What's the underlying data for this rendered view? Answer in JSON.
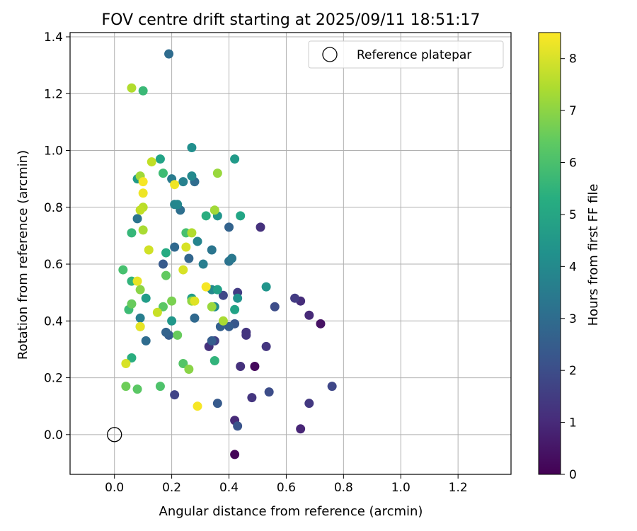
{
  "chart_data": {
    "type": "scatter",
    "title": "FOV centre drift starting at 2025/09/11 18:51:17",
    "xlabel": "Angular distance from reference (arcmin)",
    "ylabel": "Rotation from reference (arcmin)",
    "xlim": [
      -0.155,
      1.385
    ],
    "ylim": [
      -0.14,
      1.415
    ],
    "xticks": [
      "0.0",
      "0.2",
      "0.4",
      "0.6",
      "0.8",
      "1.0",
      "1.2"
    ],
    "yticks": [
      "0.0",
      "0.2",
      "0.4",
      "0.6",
      "0.8",
      "1.0",
      "1.2",
      "1.4"
    ],
    "grid": true,
    "legend": {
      "position": "upper-right",
      "entries": [
        "Reference platepar"
      ]
    },
    "reference": {
      "x": 0.0,
      "y": 0.0
    },
    "colorbar": {
      "label": "Hours from first FF file",
      "range": [
        0,
        8.5
      ],
      "ticks": [
        "0",
        "1",
        "2",
        "3",
        "4",
        "5",
        "6",
        "7",
        "8"
      ],
      "colormap": "viridis"
    },
    "points": [
      {
        "x": 0.42,
        "y": -0.07,
        "hours": 0.1
      },
      {
        "x": 0.49,
        "y": 0.24,
        "hours": 0.2
      },
      {
        "x": 0.72,
        "y": 0.39,
        "hours": 0.4
      },
      {
        "x": 0.65,
        "y": 0.02,
        "hours": 0.9
      },
      {
        "x": 0.42,
        "y": 0.05,
        "hours": 1.0
      },
      {
        "x": 0.68,
        "y": 0.42,
        "hours": 1.0
      },
      {
        "x": 0.65,
        "y": 0.47,
        "hours": 1.1
      },
      {
        "x": 0.51,
        "y": 0.73,
        "hours": 1.2
      },
      {
        "x": 0.33,
        "y": 0.31,
        "hours": 1.2
      },
      {
        "x": 0.44,
        "y": 0.24,
        "hours": 1.2
      },
      {
        "x": 0.46,
        "y": 0.36,
        "hours": 1.3
      },
      {
        "x": 0.46,
        "y": 0.35,
        "hours": 1.3
      },
      {
        "x": 0.48,
        "y": 0.13,
        "hours": 1.3
      },
      {
        "x": 0.53,
        "y": 0.31,
        "hours": 1.3
      },
      {
        "x": 0.68,
        "y": 0.11,
        "hours": 1.4
      },
      {
        "x": 0.63,
        "y": 0.48,
        "hours": 1.5
      },
      {
        "x": 0.43,
        "y": 0.5,
        "hours": 1.5
      },
      {
        "x": 0.35,
        "y": 0.33,
        "hours": 1.6
      },
      {
        "x": 0.21,
        "y": 0.14,
        "hours": 1.7
      },
      {
        "x": 0.76,
        "y": 0.17,
        "hours": 1.8
      },
      {
        "x": 0.38,
        "y": 0.49,
        "hours": 1.8
      },
      {
        "x": 0.56,
        "y": 0.45,
        "hours": 2.0
      },
      {
        "x": 0.54,
        "y": 0.15,
        "hours": 2.0
      },
      {
        "x": 0.43,
        "y": 0.03,
        "hours": 2.2
      },
      {
        "x": 0.42,
        "y": 0.39,
        "hours": 2.3
      },
      {
        "x": 0.36,
        "y": 0.11,
        "hours": 2.4
      },
      {
        "x": 0.17,
        "y": 0.6,
        "hours": 2.4
      },
      {
        "x": 0.34,
        "y": 0.33,
        "hours": 2.5
      },
      {
        "x": 0.4,
        "y": 0.38,
        "hours": 2.5
      },
      {
        "x": 0.19,
        "y": 0.35,
        "hours": 2.5
      },
      {
        "x": 0.37,
        "y": 0.38,
        "hours": 2.6
      },
      {
        "x": 0.18,
        "y": 0.36,
        "hours": 2.7
      },
      {
        "x": 0.4,
        "y": 0.73,
        "hours": 2.7
      },
      {
        "x": 0.26,
        "y": 0.62,
        "hours": 2.8
      },
      {
        "x": 0.21,
        "y": 0.66,
        "hours": 2.9
      },
      {
        "x": 0.28,
        "y": 0.41,
        "hours": 2.9
      },
      {
        "x": 0.11,
        "y": 0.33,
        "hours": 3.0
      },
      {
        "x": 0.19,
        "y": 1.34,
        "hours": 3.0
      },
      {
        "x": 0.28,
        "y": 0.89,
        "hours": 3.0
      },
      {
        "x": 0.23,
        "y": 0.79,
        "hours": 3.1
      },
      {
        "x": 0.4,
        "y": 0.61,
        "hours": 3.2
      },
      {
        "x": 0.08,
        "y": 0.76,
        "hours": 3.3
      },
      {
        "x": 0.34,
        "y": 0.65,
        "hours": 3.3
      },
      {
        "x": 0.41,
        "y": 0.62,
        "hours": 3.4
      },
      {
        "x": 0.2,
        "y": 0.9,
        "hours": 3.5
      },
      {
        "x": 0.09,
        "y": 0.41,
        "hours": 3.6
      },
      {
        "x": 0.31,
        "y": 0.6,
        "hours": 3.6
      },
      {
        "x": 0.24,
        "y": 0.89,
        "hours": 3.7
      },
      {
        "x": 0.29,
        "y": 0.68,
        "hours": 3.8
      },
      {
        "x": 0.21,
        "y": 0.81,
        "hours": 3.8
      },
      {
        "x": 0.22,
        "y": 0.81,
        "hours": 3.9
      },
      {
        "x": 0.27,
        "y": 0.91,
        "hours": 4.0
      },
      {
        "x": 0.34,
        "y": 0.51,
        "hours": 4.0
      },
      {
        "x": 0.35,
        "y": 0.45,
        "hours": 4.1
      },
      {
        "x": 0.27,
        "y": 1.01,
        "hours": 4.2
      },
      {
        "x": 0.43,
        "y": 0.48,
        "hours": 4.3
      },
      {
        "x": 0.36,
        "y": 0.77,
        "hours": 4.4
      },
      {
        "x": 0.53,
        "y": 0.52,
        "hours": 4.4
      },
      {
        "x": 0.2,
        "y": 0.4,
        "hours": 4.5
      },
      {
        "x": 0.42,
        "y": 0.97,
        "hours": 4.6
      },
      {
        "x": 0.08,
        "y": 0.9,
        "hours": 4.6
      },
      {
        "x": 0.11,
        "y": 0.48,
        "hours": 4.7
      },
      {
        "x": 0.27,
        "y": 0.48,
        "hours": 4.7
      },
      {
        "x": 0.36,
        "y": 0.51,
        "hours": 4.8
      },
      {
        "x": 0.42,
        "y": 0.44,
        "hours": 4.9
      },
      {
        "x": 0.16,
        "y": 0.97,
        "hours": 4.9
      },
      {
        "x": 0.44,
        "y": 0.77,
        "hours": 5.0
      },
      {
        "x": 0.18,
        "y": 0.64,
        "hours": 5.2
      },
      {
        "x": 0.32,
        "y": 0.77,
        "hours": 5.3
      },
      {
        "x": 0.06,
        "y": 0.27,
        "hours": 5.3
      },
      {
        "x": 0.06,
        "y": 0.54,
        "hours": 5.5
      },
      {
        "x": 0.35,
        "y": 0.26,
        "hours": 5.5
      },
      {
        "x": 0.06,
        "y": 0.71,
        "hours": 5.6
      },
      {
        "x": 0.1,
        "y": 1.21,
        "hours": 5.7
      },
      {
        "x": 0.17,
        "y": 0.92,
        "hours": 5.8
      },
      {
        "x": 0.05,
        "y": 0.44,
        "hours": 5.8
      },
      {
        "x": 0.09,
        "y": 0.38,
        "hours": 5.9
      },
      {
        "x": 0.03,
        "y": 0.58,
        "hours": 6.0
      },
      {
        "x": 0.25,
        "y": 0.71,
        "hours": 6.0
      },
      {
        "x": 0.16,
        "y": 0.17,
        "hours": 6.1
      },
      {
        "x": 0.24,
        "y": 0.25,
        "hours": 6.2
      },
      {
        "x": 0.17,
        "y": 0.45,
        "hours": 6.3
      },
      {
        "x": 0.08,
        "y": 0.16,
        "hours": 6.3
      },
      {
        "x": 0.18,
        "y": 0.56,
        "hours": 6.4
      },
      {
        "x": 0.22,
        "y": 0.35,
        "hours": 6.5
      },
      {
        "x": 0.06,
        "y": 0.46,
        "hours": 6.5
      },
      {
        "x": 0.04,
        "y": 0.17,
        "hours": 6.6
      },
      {
        "x": 0.2,
        "y": 0.47,
        "hours": 6.8
      },
      {
        "x": 0.09,
        "y": 0.51,
        "hours": 7.0
      },
      {
        "x": 0.26,
        "y": 0.23,
        "hours": 7.0
      },
      {
        "x": 0.27,
        "y": 0.47,
        "hours": 7.1
      },
      {
        "x": 0.34,
        "y": 0.45,
        "hours": 7.2
      },
      {
        "x": 0.36,
        "y": 0.92,
        "hours": 7.2
      },
      {
        "x": 0.35,
        "y": 0.79,
        "hours": 7.3
      },
      {
        "x": 0.09,
        "y": 0.91,
        "hours": 7.3
      },
      {
        "x": 0.1,
        "y": 0.72,
        "hours": 7.4
      },
      {
        "x": 0.38,
        "y": 0.4,
        "hours": 7.4
      },
      {
        "x": 0.06,
        "y": 1.22,
        "hours": 7.5
      },
      {
        "x": 0.27,
        "y": 0.71,
        "hours": 7.5
      },
      {
        "x": 0.1,
        "y": 0.8,
        "hours": 7.6
      },
      {
        "x": 0.09,
        "y": 0.79,
        "hours": 7.7
      },
      {
        "x": 0.13,
        "y": 0.96,
        "hours": 7.7
      },
      {
        "x": 0.15,
        "y": 0.43,
        "hours": 7.8
      },
      {
        "x": 0.12,
        "y": 0.65,
        "hours": 7.9
      },
      {
        "x": 0.25,
        "y": 0.66,
        "hours": 8.0
      },
      {
        "x": 0.24,
        "y": 0.58,
        "hours": 8.0
      },
      {
        "x": 0.04,
        "y": 0.25,
        "hours": 8.0
      },
      {
        "x": 0.28,
        "y": 0.47,
        "hours": 8.1
      },
      {
        "x": 0.08,
        "y": 0.54,
        "hours": 8.2
      },
      {
        "x": 0.09,
        "y": 0.38,
        "hours": 8.2
      },
      {
        "x": 0.21,
        "y": 0.88,
        "hours": 8.3
      },
      {
        "x": 0.1,
        "y": 0.85,
        "hours": 8.3
      },
      {
        "x": 0.32,
        "y": 0.52,
        "hours": 8.4
      },
      {
        "x": 0.29,
        "y": 0.1,
        "hours": 8.4
      },
      {
        "x": 0.1,
        "y": 0.89,
        "hours": 8.4
      }
    ]
  }
}
